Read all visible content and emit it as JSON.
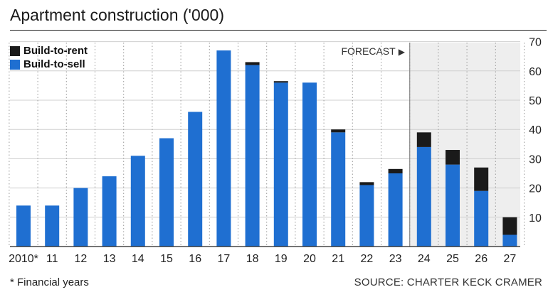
{
  "title": "Apartment construction ('000)",
  "footnote": "* Financial years",
  "source": "SOURCE: CHARTER KECK CRAMER",
  "forecast_label": "FORECAST",
  "forecast_arrow": "▶",
  "colors": {
    "sell": "#1f6fd1",
    "rent": "#1a1a1a",
    "forecast_bg": "#eeeeee"
  },
  "chart_data": {
    "type": "bar",
    "stacked": true,
    "categories": [
      "2010*",
      "11",
      "12",
      "13",
      "14",
      "15",
      "16",
      "17",
      "18",
      "19",
      "20",
      "21",
      "22",
      "23",
      "24",
      "25",
      "26",
      "27"
    ],
    "series": [
      {
        "name": "Build-to-sell",
        "values": [
          14,
          14,
          20,
          24,
          31,
          37,
          46,
          67,
          62,
          56,
          56,
          39,
          21,
          25,
          34,
          28,
          19,
          4
        ]
      },
      {
        "name": "Build-to-rent",
        "values": [
          0,
          0,
          0,
          0,
          0,
          0,
          0,
          0,
          1,
          0.5,
          0,
          1,
          1,
          1.5,
          5,
          5,
          8,
          6
        ]
      }
    ],
    "ylim": [
      0,
      70
    ],
    "yticks": [
      10,
      20,
      30,
      40,
      50,
      60,
      70
    ],
    "forecast_start_category": "24",
    "legend_position": "top-left"
  }
}
